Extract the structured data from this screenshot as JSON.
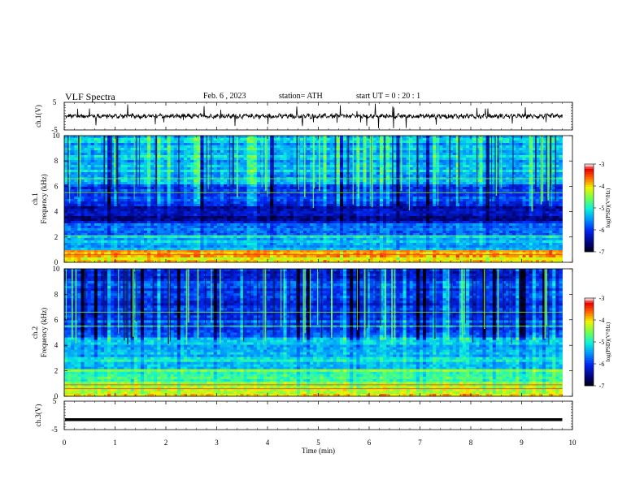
{
  "header": {
    "title": "VLF  Spectra",
    "date": "Feb. 6  , 2023",
    "station": "station= ATH",
    "start_ut": "start  UT  =    0  : 20 : 1"
  },
  "chart_data": [
    {
      "type": "line",
      "panel": "ch1-waveform",
      "ylabel": "ch.1(V)",
      "ylim": [
        -5,
        5
      ],
      "yticks": [
        "5",
        "-5"
      ],
      "color": "#000000",
      "x_range": [
        0,
        9.8
      ]
    },
    {
      "type": "heatmap",
      "panel": "ch1-spectrogram",
      "ylabel_line1": "ch.1",
      "ylabel_line2": "Frequency  (kHz)",
      "ylim": [
        0,
        10
      ],
      "yticks": [
        "0",
        "2",
        "4",
        "6",
        "8",
        "10"
      ],
      "x_range": [
        0,
        9.8
      ],
      "colorbar": {
        "label": "log(PSD)(V²/Hz)",
        "range": [
          -7,
          -3
        ],
        "ticks": [
          "-3",
          "-4",
          "-5",
          "-6",
          "-7"
        ]
      },
      "bands": [
        {
          "range": [
            0,
            0.6
          ],
          "level": -4.0
        },
        {
          "range": [
            0.6,
            1.0
          ],
          "level": -3.8
        },
        {
          "range": [
            1.0,
            2.2
          ],
          "level": -5.3
        },
        {
          "range": [
            2.2,
            3.0
          ],
          "level": -5.6
        },
        {
          "range": [
            3.0,
            4.6
          ],
          "level": -6.3
        },
        {
          "range": [
            4.6,
            6.2
          ],
          "level": -5.9
        },
        {
          "range": [
            6.2,
            10.0
          ],
          "level": -5.3
        }
      ]
    },
    {
      "type": "heatmap",
      "panel": "ch2-spectrogram",
      "ylabel_line1": "ch.2",
      "ylabel_line2": "Frequency  (kHz)",
      "ylim": [
        0,
        10
      ],
      "yticks": [
        "0",
        "2",
        "4",
        "6",
        "8",
        "10"
      ],
      "x_range": [
        0,
        9.8
      ],
      "colorbar": {
        "label": "log(PSD)(V²/Hz)",
        "range": [
          -7,
          -3
        ],
        "ticks": [
          "-3",
          "-4",
          "-5",
          "-6",
          "-7"
        ]
      },
      "bands": [
        {
          "range": [
            0,
            1.0
          ],
          "level": -4.1
        },
        {
          "range": [
            1.0,
            2.2
          ],
          "level": -4.7
        },
        {
          "range": [
            2.2,
            4.6
          ],
          "level": -5.2
        },
        {
          "range": [
            4.6,
            6.3
          ],
          "level": -5.8
        },
        {
          "range": [
            6.3,
            10.0
          ],
          "level": -6.0
        }
      ]
    },
    {
      "type": "line",
      "panel": "ch3-waveform",
      "ylabel": "ch.3(V)",
      "ylim": [
        -5,
        5
      ],
      "yticks": [
        "5",
        "-5"
      ],
      "color": "#000000",
      "x_range": [
        0,
        9.8
      ],
      "level": -1.5
    }
  ],
  "xaxis": {
    "label": "Time  (min)",
    "range": [
      0,
      10
    ],
    "ticks": [
      "0",
      "1",
      "2",
      "3",
      "4",
      "5",
      "6",
      "7",
      "8",
      "9",
      "10"
    ]
  }
}
